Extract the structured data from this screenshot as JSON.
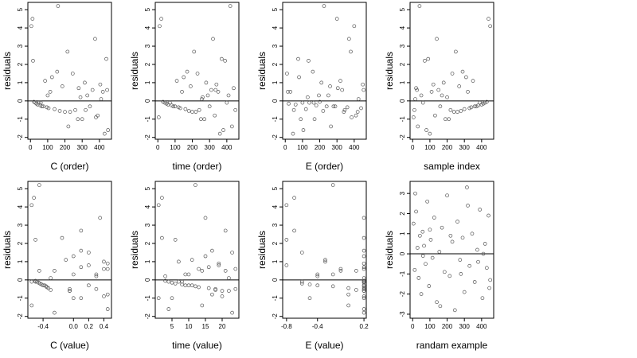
{
  "chart_data": [
    {
      "type": "scatter",
      "xlabel": "C (order)",
      "ylabel": "residuals",
      "color": "#555555",
      "hline": 0,
      "xlim": [
        -15,
        470
      ],
      "ylim": [
        -2.1,
        5.4
      ],
      "xticks": [
        0,
        100,
        200,
        300,
        400
      ],
      "yticks": [
        -2,
        -1,
        0,
        1,
        2,
        3,
        4,
        5
      ],
      "x": [
        5,
        12,
        20,
        28,
        35,
        42,
        50,
        58,
        66,
        75,
        85,
        95,
        105,
        115,
        125,
        140,
        155,
        170,
        185,
        200,
        215,
        230,
        245,
        260,
        275,
        290,
        300,
        315,
        330,
        345,
        360,
        375,
        390,
        405,
        420,
        430,
        440,
        450,
        15,
        60,
        100,
        160,
        220,
        280,
        320,
        380,
        410,
        445
      ],
      "y": [
        4.1,
        4.5,
        -0.05,
        -0.1,
        -0.15,
        -0.2,
        -0.1,
        -0.25,
        -0.3,
        -0.3,
        1.1,
        -0.35,
        -0.4,
        0.5,
        1.3,
        -0.45,
        1.6,
        -0.55,
        0.8,
        -0.6,
        2.7,
        -0.6,
        1.5,
        -0.5,
        -1.0,
        0.2,
        -1.0,
        1.0,
        0.3,
        -0.3,
        0.6,
        3.4,
        -0.8,
        0.9,
        0.5,
        -1.8,
        2.3,
        -1.6,
        2.2,
        -0.1,
        0.3,
        5.2,
        -1.4,
        0.7,
        -0.5,
        -0.9,
        0.1,
        0.6
      ]
    },
    {
      "type": "scatter",
      "xlabel": "time (order)",
      "ylabel": "residuals",
      "color": "#555555",
      "hline": 0,
      "xlim": [
        -15,
        470
      ],
      "ylim": [
        -2.1,
        5.4
      ],
      "xticks": [
        0,
        100,
        200,
        300,
        400
      ],
      "yticks": [
        -2,
        -1,
        0,
        1,
        2,
        3,
        4,
        5
      ],
      "x": [
        10,
        20,
        30,
        40,
        50,
        60,
        70,
        80,
        90,
        100,
        110,
        120,
        130,
        140,
        150,
        160,
        170,
        180,
        190,
        200,
        210,
        220,
        230,
        240,
        250,
        260,
        270,
        280,
        290,
        300,
        310,
        320,
        330,
        340,
        350,
        360,
        370,
        380,
        390,
        400,
        410,
        420,
        430,
        440,
        450,
        5,
        255,
        335
      ],
      "y": [
        4.1,
        4.5,
        -0.05,
        -0.1,
        -0.15,
        -0.2,
        -0.1,
        -0.25,
        -0.3,
        -0.3,
        1.1,
        -0.35,
        -0.4,
        0.5,
        1.3,
        -0.45,
        1.6,
        -0.55,
        0.8,
        -0.6,
        2.7,
        -0.6,
        1.5,
        -0.5,
        -1.0,
        0.2,
        -1.0,
        1.0,
        0.3,
        -0.3,
        0.6,
        3.4,
        -0.8,
        0.9,
        0.5,
        -1.8,
        2.3,
        -1.6,
        2.2,
        -0.1,
        0.3,
        5.2,
        -1.4,
        0.7,
        -0.5,
        -0.9,
        0.1,
        0.6
      ]
    },
    {
      "type": "scatter",
      "xlabel": "E (order)",
      "ylabel": "residuals",
      "color": "#555555",
      "hline": 0,
      "xlim": [
        -15,
        470
      ],
      "ylim": [
        -2.1,
        5.4
      ],
      "xticks": [
        0,
        100,
        200,
        300,
        400
      ],
      "yticks": [
        -2,
        -1,
        0,
        1,
        2,
        3,
        4,
        5
      ],
      "x": [
        400,
        300,
        200,
        100,
        20,
        60,
        140,
        180,
        240,
        280,
        320,
        360,
        440,
        30,
        80,
        120,
        160,
        220,
        260,
        340,
        380,
        420,
        10,
        50,
        90,
        130,
        170,
        210,
        250,
        290,
        330,
        370,
        410,
        450,
        15,
        45,
        75,
        105,
        135,
        165,
        195,
        225,
        265,
        305,
        345,
        385,
        425,
        455
      ],
      "y": [
        4.1,
        4.5,
        -0.05,
        -0.1,
        -0.15,
        -0.2,
        -0.1,
        -0.25,
        -0.3,
        -0.3,
        1.1,
        -0.35,
        -0.4,
        0.5,
        1.3,
        -0.45,
        1.6,
        -0.55,
        0.8,
        -0.6,
        2.7,
        -0.6,
        1.5,
        -0.5,
        -1.0,
        0.2,
        -1.0,
        1.0,
        0.3,
        -0.3,
        0.6,
        3.4,
        -0.8,
        0.9,
        0.5,
        -1.8,
        2.3,
        -1.6,
        2.2,
        -0.1,
        0.3,
        5.2,
        -1.4,
        0.7,
        -0.5,
        -0.9,
        0.1,
        0.6
      ]
    },
    {
      "type": "scatter",
      "xlabel": "sample index",
      "ylabel": "residuals",
      "color": "#555555",
      "hline": 0,
      "xlim": [
        -15,
        470
      ],
      "ylim": [
        -2.1,
        5.4
      ],
      "xticks": [
        0,
        100,
        200,
        300,
        400
      ],
      "yticks": [
        -2,
        -1,
        0,
        1,
        2,
        3,
        4,
        5
      ],
      "x": [
        450,
        440,
        430,
        420,
        410,
        400,
        390,
        380,
        370,
        360,
        350,
        340,
        330,
        320,
        310,
        300,
        290,
        280,
        270,
        260,
        250,
        240,
        230,
        220,
        210,
        200,
        190,
        180,
        170,
        160,
        150,
        140,
        130,
        120,
        110,
        100,
        90,
        80,
        70,
        60,
        50,
        40,
        30,
        20,
        10,
        5,
        15,
        25
      ],
      "y": [
        4.1,
        4.5,
        -0.05,
        -0.1,
        -0.15,
        -0.2,
        -0.1,
        -0.25,
        -0.3,
        -0.3,
        1.1,
        -0.35,
        -0.4,
        0.5,
        1.3,
        -0.45,
        1.6,
        -0.55,
        0.8,
        -0.6,
        2.7,
        -0.6,
        1.5,
        -0.5,
        -1.0,
        0.2,
        -1.0,
        1.0,
        0.3,
        -0.3,
        0.6,
        3.4,
        -0.8,
        0.9,
        0.5,
        -1.8,
        2.3,
        -1.6,
        2.2,
        -0.1,
        0.3,
        5.2,
        -1.4,
        0.7,
        -0.5,
        -0.9,
        0.1,
        0.6
      ]
    },
    {
      "type": "scatter",
      "xlabel": "C (value)",
      "ylabel": "residuals",
      "color": "#555555",
      "hline": 0,
      "xlim": [
        -0.6,
        0.5
      ],
      "ylim": [
        -2.1,
        5.4
      ],
      "xticks": [
        -0.4,
        {
          "value": 0,
          "label": "0.0"
        },
        0.2,
        0.4
      ],
      "yticks": [
        -2,
        -1,
        0,
        1,
        2,
        3,
        4,
        5
      ],
      "x": [
        -0.55,
        -0.52,
        -0.5,
        -0.48,
        -0.46,
        -0.44,
        -0.5,
        -0.42,
        -0.4,
        -0.38,
        -0.1,
        -0.36,
        -0.35,
        -0.25,
        0.0,
        -0.33,
        0.1,
        -0.3,
        0.2,
        -0.05,
        0.1,
        -0.05,
        0.2,
        -0.05,
        0.0,
        0.3,
        0.1,
        0.4,
        0.3,
        0.2,
        0.4,
        0.35,
        0.45,
        0.45,
        -0.45,
        -0.25,
        -0.15,
        0.45,
        -0.5,
        -0.55,
        0.0,
        -0.45,
        -0.55,
        0.1,
        0.3,
        0.4,
        -0.3,
        0.45
      ],
      "y": [
        4.1,
        4.5,
        -0.05,
        -0.1,
        -0.15,
        -0.2,
        -0.1,
        -0.25,
        -0.3,
        -0.3,
        1.1,
        -0.35,
        -0.4,
        0.5,
        1.3,
        -0.45,
        1.6,
        -0.55,
        0.8,
        -0.6,
        2.7,
        -0.6,
        1.5,
        -0.5,
        -1.0,
        0.2,
        -1.0,
        1.0,
        0.3,
        -0.3,
        0.6,
        3.4,
        -0.8,
        0.9,
        0.5,
        -1.8,
        2.3,
        -1.6,
        2.2,
        -0.1,
        0.3,
        5.2,
        -1.4,
        0.7,
        -0.5,
        -0.9,
        0.1,
        0.6
      ]
    },
    {
      "type": "scatter",
      "xlabel": "time (value)",
      "ylabel": "residuals",
      "color": "#555555",
      "hline": 0,
      "xlim": [
        0,
        25
      ],
      "ylim": [
        -2.1,
        5.4
      ],
      "xticks": [
        5,
        10,
        15,
        20
      ],
      "yticks": [
        -2,
        -1,
        0,
        1,
        2,
        3,
        4,
        5
      ],
      "x": [
        1,
        2,
        3,
        4,
        5,
        6,
        7,
        8,
        9,
        10,
        11,
        12,
        13,
        14,
        15,
        16,
        17,
        18,
        19,
        20,
        21,
        22,
        23,
        24,
        1,
        3,
        5,
        7,
        9,
        11,
        13,
        15,
        17,
        19,
        21,
        23,
        2,
        4,
        6,
        8,
        10,
        12,
        14,
        16,
        18,
        20,
        22,
        24
      ],
      "y": [
        4.1,
        4.5,
        -0.05,
        -0.1,
        -0.15,
        -0.2,
        -0.1,
        -0.25,
        -0.3,
        -0.3,
        1.1,
        -0.35,
        -0.4,
        0.5,
        1.3,
        -0.45,
        1.6,
        -0.55,
        0.8,
        -0.6,
        2.7,
        -0.6,
        1.5,
        -0.5,
        -1.0,
        0.2,
        -1.0,
        1.0,
        0.3,
        -0.3,
        0.6,
        3.4,
        -0.8,
        0.9,
        0.5,
        -1.8,
        2.3,
        -1.6,
        2.2,
        -0.1,
        0.3,
        5.2,
        -1.4,
        0.7,
        -0.5,
        -0.9,
        0.1,
        0.6
      ]
    },
    {
      "type": "scatter",
      "xlabel": "E (value)",
      "ylabel": "residuals",
      "color": "#555555",
      "hline": 0,
      "xlim": [
        -0.85,
        0.23
      ],
      "ylim": [
        -2.1,
        5.4
      ],
      "xticks": [
        -0.8,
        -0.4,
        0.2
      ],
      "yticks": [
        -2,
        -1,
        0,
        1,
        2,
        3,
        4,
        5
      ],
      "x": [
        -0.8,
        -0.7,
        0.2,
        0.2,
        0.2,
        -0.6,
        0.2,
        -0.5,
        -0.4,
        0.2,
        -0.3,
        -0.2,
        0.2,
        -0.1,
        0.2,
        0.0,
        0.2,
        0.1,
        -0.8,
        0.2,
        -0.7,
        0.2,
        -0.6,
        0.2,
        -0.5,
        -0.4,
        0.2,
        -0.3,
        -0.2,
        0.2,
        -0.1,
        0.2,
        0.0,
        0.2,
        0.1,
        0.2,
        0.2,
        0.2,
        -0.8,
        -0.6,
        -0.4,
        -0.2,
        0.0,
        0.2,
        0.2,
        0.2,
        0.2,
        0.2
      ],
      "y": [
        4.1,
        4.5,
        -0.05,
        -0.1,
        -0.15,
        -0.2,
        -0.1,
        -0.25,
        -0.3,
        -0.3,
        1.1,
        -0.35,
        -0.4,
        0.5,
        1.3,
        -0.45,
        1.6,
        -0.55,
        0.8,
        -0.6,
        2.7,
        -0.6,
        1.5,
        -0.5,
        -1.0,
        0.2,
        -1.0,
        1.0,
        0.3,
        -0.3,
        0.6,
        3.4,
        -0.8,
        0.9,
        0.5,
        -1.8,
        2.3,
        -1.6,
        2.2,
        -0.1,
        0.3,
        5.2,
        -1.4,
        0.7,
        -0.5,
        -0.9,
        0.1,
        0.6
      ]
    },
    {
      "type": "scatter",
      "xlabel": "randam example",
      "ylabel": "residuals",
      "color": "#555555",
      "hline": 0,
      "xlim": [
        -15,
        470
      ],
      "ylim": [
        -3.2,
        3.6
      ],
      "xticks": [
        0,
        100,
        200,
        300,
        400
      ],
      "yticks": [
        -3,
        -2,
        -1,
        0,
        1,
        2,
        3
      ],
      "x": [
        5,
        12,
        20,
        28,
        35,
        42,
        50,
        58,
        66,
        75,
        85,
        95,
        105,
        115,
        125,
        140,
        155,
        170,
        185,
        200,
        215,
        230,
        245,
        260,
        275,
        290,
        300,
        315,
        330,
        345,
        360,
        375,
        390,
        405,
        420,
        430,
        440,
        450,
        15,
        60,
        100,
        160,
        220,
        280,
        320,
        380,
        410,
        445
      ],
      "y": [
        1.5,
        -0.8,
        2.1,
        0.3,
        -1.2,
        0.9,
        -2.0,
        1.1,
        0.4,
        -0.5,
        2.6,
        -1.6,
        0.7,
        -0.2,
        1.8,
        -2.4,
        0.1,
        1.3,
        -0.9,
        2.9,
        -1.1,
        0.6,
        -2.8,
        1.6,
        -0.3,
        0.8,
        -1.9,
        3.3,
        -0.6,
        1.0,
        -1.4,
        0.2,
        2.2,
        -2.2,
        0.5,
        -0.7,
        1.9,
        -1.3,
        3.0,
        -0.1,
        1.2,
        -2.6,
        0.9,
        -1.0,
        2.4,
        -0.4,
        0.0,
        -1.7
      ]
    }
  ]
}
